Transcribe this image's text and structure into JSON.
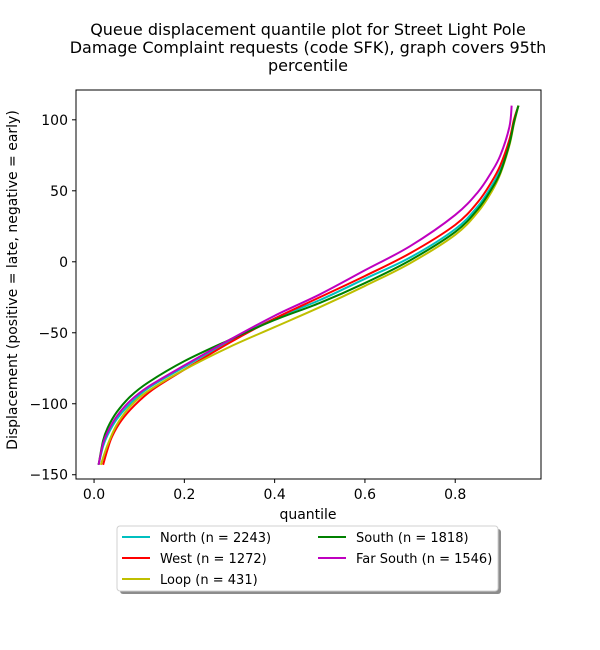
{
  "chart_data": {
    "type": "line",
    "title": [
      "Queue displacement quantile plot for Street Light Pole",
      "Damage Complaint  requests (code SFK), graph covers 95th",
      "percentile"
    ],
    "xlabel": "quantile",
    "ylabel": "Displacement (positive = late, negative = early)",
    "xlim": [
      -0.04,
      0.99
    ],
    "ylim": [
      -153,
      121
    ],
    "xticks": [
      0.0,
      0.2,
      0.4,
      0.6,
      0.8
    ],
    "xtick_labels": [
      "0.0",
      "0.2",
      "0.4",
      "0.6",
      "0.8"
    ],
    "yticks": [
      -150,
      -100,
      -50,
      0,
      50,
      100
    ],
    "ytick_labels": [
      "−150",
      "−100",
      "−50",
      "0",
      "50",
      "100"
    ],
    "grid": false,
    "legend_placement": "bottom-center",
    "legend_columns": 2,
    "series": [
      {
        "name": "North (n = 2243)",
        "color": "#00bfbf",
        "x": [
          0.01,
          0.02,
          0.03,
          0.05,
          0.08,
          0.12,
          0.2,
          0.3,
          0.4,
          0.5,
          0.6,
          0.7,
          0.8,
          0.85,
          0.88,
          0.9,
          0.92,
          0.93,
          0.94
        ],
        "y": [
          -143,
          -130,
          -122,
          -111,
          -100,
          -89,
          -74,
          -56,
          -40,
          -27,
          -12,
          3,
          23,
          39,
          53,
          65,
          84,
          99,
          110
        ]
      },
      {
        "name": "West (n = 1272)",
        "color": "#ff0000",
        "x": [
          0.02,
          0.03,
          0.04,
          0.06,
          0.09,
          0.13,
          0.2,
          0.3,
          0.4,
          0.5,
          0.6,
          0.7,
          0.8,
          0.85,
          0.88,
          0.9,
          0.92,
          0.93,
          0.94
        ],
        "y": [
          -143,
          -132,
          -123,
          -112,
          -101,
          -90,
          -76,
          -57,
          -40,
          -25,
          -10,
          6,
          26,
          42,
          56,
          68,
          86,
          100,
          110
        ]
      },
      {
        "name": "Loop (n = 431)",
        "color": "#bfbf00",
        "x": [
          0.015,
          0.03,
          0.05,
          0.08,
          0.12,
          0.2,
          0.3,
          0.4,
          0.5,
          0.6,
          0.7,
          0.8,
          0.85,
          0.88,
          0.9,
          0.92,
          0.93,
          0.94
        ],
        "y": [
          -143,
          -129,
          -115,
          -102,
          -91,
          -76,
          -60,
          -46,
          -32,
          -17,
          -1,
          19,
          35,
          49,
          62,
          82,
          97,
          110
        ]
      },
      {
        "name": "South (n = 1818)",
        "color": "#008000",
        "x": [
          0.01,
          0.02,
          0.03,
          0.05,
          0.08,
          0.12,
          0.2,
          0.3,
          0.4,
          0.5,
          0.6,
          0.7,
          0.8,
          0.85,
          0.88,
          0.9,
          0.92,
          0.93,
          0.94
        ],
        "y": [
          -143,
          -126,
          -117,
          -106,
          -95,
          -85,
          -70,
          -55,
          -41,
          -29,
          -15,
          1,
          21,
          37,
          51,
          63,
          83,
          98,
          110
        ]
      },
      {
        "name": "Far South (n = 1546)",
        "color": "#bf00bf",
        "x": [
          0.01,
          0.02,
          0.03,
          0.05,
          0.08,
          0.12,
          0.2,
          0.3,
          0.4,
          0.5,
          0.6,
          0.7,
          0.8,
          0.85,
          0.88,
          0.9,
          0.92,
          0.925
        ],
        "y": [
          -143,
          -128,
          -120,
          -109,
          -98,
          -88,
          -73,
          -55,
          -38,
          -23,
          -6,
          11,
          33,
          49,
          63,
          75,
          95,
          110
        ]
      }
    ]
  }
}
